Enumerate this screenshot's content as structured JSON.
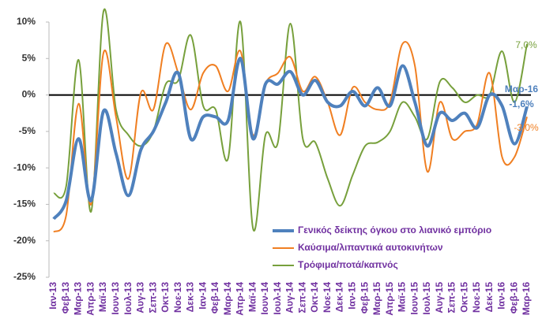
{
  "chart_data": {
    "type": "line",
    "categories": [
      "Ιαν-13",
      "Φεβ-13",
      "Μαρ-13",
      "Απρ-13",
      "Μαϊ-13",
      "Ιουν-13",
      "Ιουλ-13",
      "Αυγ-13",
      "Σεπ-13",
      "Οκτ-13",
      "Νοε-13",
      "Δεκ-13",
      "Ιαν-14",
      "Φεβ-14",
      "Μαρ-14",
      "Απρ-14",
      "Μαϊ-14",
      "Ιουν-14",
      "Ιουλ-14",
      "Αυγ-14",
      "Σεπ-14",
      "Οκτ-14",
      "Νοε-14",
      "Δεκ-14",
      "Ιαν-15",
      "Φεβ-15",
      "Μαρ-15",
      "Απρ-15",
      "Μαϊ-15",
      "Ιουν-15",
      "Ιουλ-15",
      "Αυγ-15",
      "Σεπ-15",
      "Οκτ-15",
      "Νοε-15",
      "Δεκ-15",
      "Ιαν-16",
      "Φεβ-16",
      "Μαρ-16"
    ],
    "series": [
      {
        "name": "Γενικός δείκτης όγκου στο λιανικό εμπόριο",
        "color": "#4f81bd",
        "width": 4,
        "values": [
          -17,
          -14.5,
          -6,
          -14.5,
          -2.2,
          -8,
          -13.8,
          -7.5,
          -5,
          -1,
          3,
          -6,
          -3,
          -3,
          -3.5,
          5,
          -6,
          1.5,
          1.5,
          3.2,
          0,
          2,
          -1,
          -1.5,
          0.5,
          -1.5,
          1,
          -1.5,
          4,
          -1,
          -7,
          -2.5,
          -3.5,
          -2.5,
          -4.5,
          0,
          -1.5,
          -6.7,
          -1.6
        ],
        "value_labels": [
          null,
          null,
          null,
          null,
          null,
          null,
          null,
          null,
          null,
          null,
          null,
          null,
          null,
          null,
          null,
          null,
          null,
          null,
          null,
          null,
          null,
          null,
          null,
          null,
          null,
          null,
          null,
          null,
          null,
          null,
          null,
          null,
          null,
          null,
          null,
          null,
          null,
          null,
          "-1,6%"
        ]
      },
      {
        "name": "Καύσιμα/λιπαντικά αυτοκινήτων",
        "color": "#f07f22",
        "width": 2,
        "values": [
          -18.8,
          -16.5,
          -1.2,
          -15,
          5.8,
          -3,
          -11.5,
          0.3,
          -2,
          7,
          3,
          -2,
          3,
          4,
          0.5,
          6,
          -5.5,
          1.5,
          3,
          5.2,
          0.5,
          2.5,
          -1,
          -5.5,
          1,
          -1,
          -2,
          -1,
          7,
          4,
          -10.5,
          -1,
          -6,
          -5,
          -4,
          3,
          -8.5,
          -8.5,
          -3.0
        ],
        "value_labels": [
          null,
          null,
          null,
          null,
          null,
          null,
          null,
          null,
          null,
          null,
          null,
          null,
          null,
          null,
          null,
          null,
          null,
          null,
          null,
          null,
          null,
          null,
          null,
          null,
          null,
          null,
          null,
          null,
          null,
          null,
          null,
          null,
          null,
          null,
          null,
          null,
          null,
          null,
          "-3,0%"
        ]
      },
      {
        "name": "Τρόφιμα/ποτά/καπνός",
        "color": "#77a03c",
        "width": 2,
        "values": [
          -13.5,
          -12.5,
          4.8,
          -16,
          11.5,
          -2,
          -5.5,
          -7,
          -5,
          1.5,
          2,
          8.2,
          -1.5,
          -2,
          -8.7,
          10,
          -18.3,
          -5.5,
          -6.5,
          9.8,
          -6,
          -6.5,
          -11.5,
          -15.2,
          -11,
          -7,
          -6.5,
          -5,
          -1,
          -3,
          -6,
          1.8,
          1,
          -1,
          0,
          0,
          6,
          -1,
          7.0
        ],
        "value_labels": [
          null,
          null,
          null,
          null,
          null,
          null,
          null,
          null,
          null,
          null,
          null,
          null,
          null,
          null,
          null,
          null,
          null,
          null,
          null,
          null,
          null,
          null,
          null,
          null,
          null,
          null,
          null,
          null,
          null,
          null,
          null,
          null,
          null,
          null,
          null,
          null,
          null,
          null,
          "7,0%"
        ]
      }
    ],
    "ylim": [
      -25,
      10
    ],
    "yticks": [
      {
        "value": -25,
        "label": "-25%"
      },
      {
        "value": -20,
        "label": "-20%"
      },
      {
        "value": -15,
        "label": "-15%"
      },
      {
        "value": -10,
        "label": "-10%"
      },
      {
        "value": -5,
        "label": "-5%"
      },
      {
        "value": 0,
        "label": "0%"
      },
      {
        "value": 5,
        "label": "5%"
      },
      {
        "value": 10,
        "label": "10%"
      }
    ],
    "legend": "lower-right"
  }
}
